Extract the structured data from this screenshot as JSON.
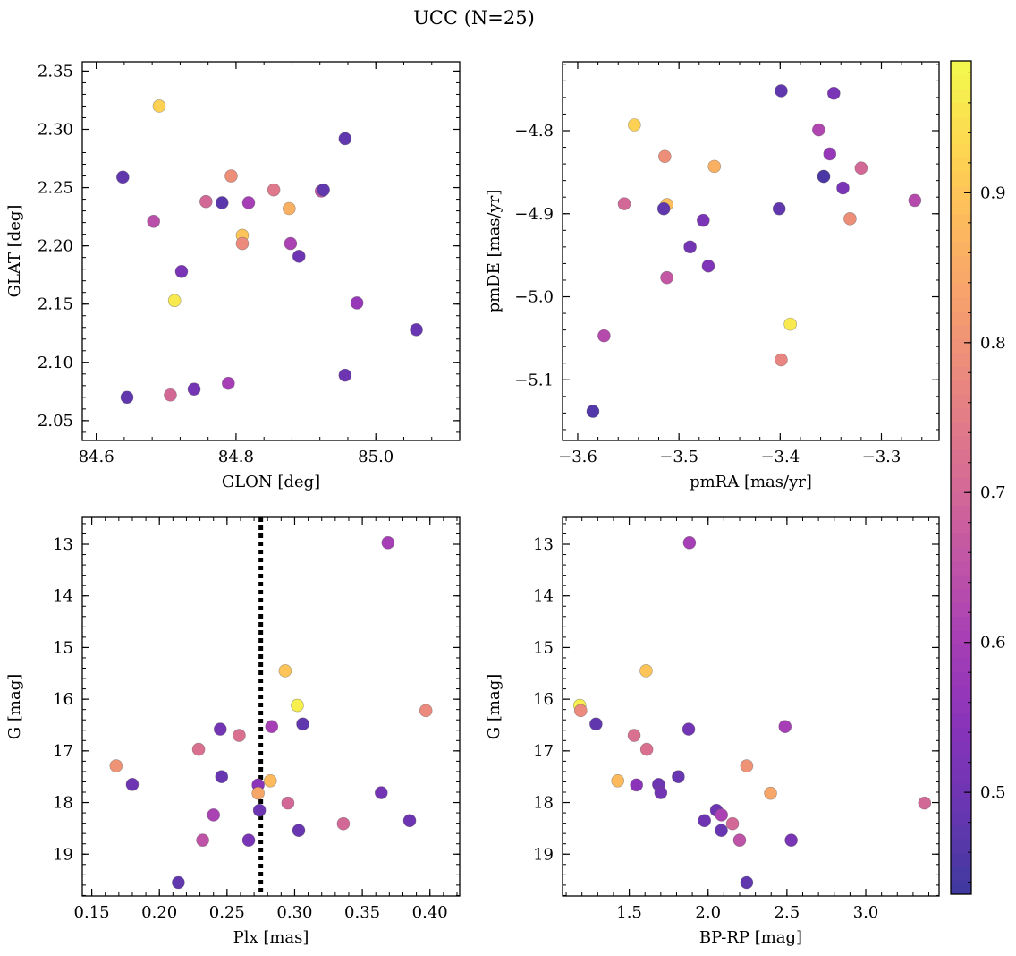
{
  "figure": {
    "title": "UCC (N=25)"
  },
  "colorbar": {
    "cmap": "plasma",
    "vmin": 0.432,
    "vmax": 0.988,
    "ticks": [
      0.5,
      0.6,
      0.7,
      0.8,
      0.9
    ],
    "tick_labels": [
      "0.5",
      "0.6",
      "0.7",
      "0.8",
      "0.9"
    ]
  },
  "chart_data": [
    {
      "type": "scatter",
      "xlabel": "GLON [deg]",
      "ylabel": "GLAT [deg]",
      "xlim": [
        84.58,
        85.12
      ],
      "ylim": [
        2.033,
        2.358
      ],
      "xticks": [
        84.6,
        84.8,
        85.0
      ],
      "xtick_labels": [
        "84.6",
        "84.8",
        "85.0"
      ],
      "yticks": [
        2.05,
        2.1,
        2.15,
        2.2,
        2.25,
        2.3,
        2.35
      ],
      "ytick_labels": [
        "2.05",
        "2.10",
        "2.15",
        "2.20",
        "2.25",
        "2.30",
        "2.35"
      ],
      "points": [
        {
          "x": 84.638,
          "y": 2.259,
          "c": 0.48
        },
        {
          "x": 84.69,
          "y": 2.32,
          "c": 0.92
        },
        {
          "x": 84.956,
          "y": 2.292,
          "c": 0.48
        },
        {
          "x": 84.793,
          "y": 2.26,
          "c": 0.79
        },
        {
          "x": 84.854,
          "y": 2.248,
          "c": 0.74
        },
        {
          "x": 84.922,
          "y": 2.247,
          "c": 0.66
        },
        {
          "x": 84.925,
          "y": 2.248,
          "c": 0.48
        },
        {
          "x": 84.757,
          "y": 2.238,
          "c": 0.7
        },
        {
          "x": 84.78,
          "y": 2.237,
          "c": 0.47
        },
        {
          "x": 84.818,
          "y": 2.237,
          "c": 0.6
        },
        {
          "x": 84.876,
          "y": 2.232,
          "c": 0.86
        },
        {
          "x": 84.682,
          "y": 2.221,
          "c": 0.64
        },
        {
          "x": 84.809,
          "y": 2.209,
          "c": 0.9
        },
        {
          "x": 84.809,
          "y": 2.202,
          "c": 0.78
        },
        {
          "x": 84.878,
          "y": 2.202,
          "c": 0.61
        },
        {
          "x": 84.89,
          "y": 2.191,
          "c": 0.5
        },
        {
          "x": 84.722,
          "y": 2.178,
          "c": 0.52
        },
        {
          "x": 84.712,
          "y": 2.153,
          "c": 0.96
        },
        {
          "x": 84.973,
          "y": 2.151,
          "c": 0.57
        },
        {
          "x": 85.058,
          "y": 2.128,
          "c": 0.49
        },
        {
          "x": 84.956,
          "y": 2.089,
          "c": 0.5
        },
        {
          "x": 84.789,
          "y": 2.082,
          "c": 0.6
        },
        {
          "x": 84.74,
          "y": 2.077,
          "c": 0.51
        },
        {
          "x": 84.706,
          "y": 2.072,
          "c": 0.7
        },
        {
          "x": 84.644,
          "y": 2.07,
          "c": 0.48
        }
      ]
    },
    {
      "type": "scatter",
      "xlabel": "pmRA [mas/yr]",
      "ylabel": "pmDE [mas/yr]",
      "xlim": [
        -3.615,
        -3.243
      ],
      "ylim": [
        -5.173,
        -4.717
      ],
      "xticks": [
        -3.6,
        -3.5,
        -3.4,
        -3.3
      ],
      "xtick_labels": [
        "−3.6",
        "−3.5",
        "−3.4",
        "−3.3"
      ],
      "yticks": [
        -5.1,
        -5.0,
        -4.9,
        -4.8
      ],
      "ytick_labels": [
        "−5.1",
        "−5.0",
        "−4.9",
        "−4.8"
      ],
      "points": [
        {
          "x": -3.399,
          "y": -4.752,
          "c": 0.48
        },
        {
          "x": -3.347,
          "y": -4.755,
          "c": 0.52
        },
        {
          "x": -3.544,
          "y": -4.793,
          "c": 0.92
        },
        {
          "x": -3.362,
          "y": -4.799,
          "c": 0.62
        },
        {
          "x": -3.514,
          "y": -4.831,
          "c": 0.79
        },
        {
          "x": -3.351,
          "y": -4.828,
          "c": 0.57
        },
        {
          "x": -3.465,
          "y": -4.843,
          "c": 0.86
        },
        {
          "x": -3.32,
          "y": -4.845,
          "c": 0.7
        },
        {
          "x": -3.357,
          "y": -4.855,
          "c": 0.48
        },
        {
          "x": -3.357,
          "y": -4.855,
          "c": 0.45
        },
        {
          "x": -3.338,
          "y": -4.869,
          "c": 0.52
        },
        {
          "x": -3.554,
          "y": -4.888,
          "c": 0.7
        },
        {
          "x": -3.512,
          "y": -4.889,
          "c": 0.89
        },
        {
          "x": -3.515,
          "y": -4.894,
          "c": 0.48
        },
        {
          "x": -3.401,
          "y": -4.894,
          "c": 0.48
        },
        {
          "x": -3.267,
          "y": -4.884,
          "c": 0.63
        },
        {
          "x": -3.331,
          "y": -4.906,
          "c": 0.79
        },
        {
          "x": -3.476,
          "y": -4.908,
          "c": 0.52
        },
        {
          "x": -3.489,
          "y": -4.94,
          "c": 0.51
        },
        {
          "x": -3.471,
          "y": -4.963,
          "c": 0.53
        },
        {
          "x": -3.512,
          "y": -4.977,
          "c": 0.66
        },
        {
          "x": -3.39,
          "y": -5.033,
          "c": 0.96
        },
        {
          "x": -3.574,
          "y": -5.047,
          "c": 0.63
        },
        {
          "x": -3.399,
          "y": -5.076,
          "c": 0.77
        },
        {
          "x": -3.585,
          "y": -5.138,
          "c": 0.46
        }
      ]
    },
    {
      "type": "scatter",
      "xlabel": "Plx [mas]",
      "ylabel": "G [mag]",
      "xlim": [
        0.143,
        0.422
      ],
      "ylim": [
        19.81,
        12.48
      ],
      "y_inverted": true,
      "xticks": [
        0.15,
        0.2,
        0.25,
        0.3,
        0.35,
        0.4
      ],
      "xtick_labels": [
        "0.15",
        "0.20",
        "0.25",
        "0.30",
        "0.35",
        "0.40"
      ],
      "yticks": [
        13,
        14,
        15,
        16,
        17,
        18,
        19
      ],
      "ytick_labels": [
        "13",
        "14",
        "15",
        "16",
        "17",
        "18",
        "19"
      ],
      "vline": 0.275,
      "points": [
        {
          "x": 0.369,
          "y": 12.97,
          "c": 0.6
        },
        {
          "x": 0.293,
          "y": 15.45,
          "c": 0.9
        },
        {
          "x": 0.302,
          "y": 16.12,
          "c": 0.97
        },
        {
          "x": 0.397,
          "y": 16.22,
          "c": 0.78
        },
        {
          "x": 0.306,
          "y": 16.48,
          "c": 0.48
        },
        {
          "x": 0.283,
          "y": 16.53,
          "c": 0.6
        },
        {
          "x": 0.245,
          "y": 16.58,
          "c": 0.51
        },
        {
          "x": 0.259,
          "y": 16.7,
          "c": 0.72
        },
        {
          "x": 0.229,
          "y": 16.97,
          "c": 0.72
        },
        {
          "x": 0.168,
          "y": 17.29,
          "c": 0.8
        },
        {
          "x": 0.246,
          "y": 17.5,
          "c": 0.49
        },
        {
          "x": 0.282,
          "y": 17.58,
          "c": 0.88
        },
        {
          "x": 0.18,
          "y": 17.65,
          "c": 0.5
        },
        {
          "x": 0.273,
          "y": 17.66,
          "c": 0.55
        },
        {
          "x": 0.273,
          "y": 17.82,
          "c": 0.84
        },
        {
          "x": 0.364,
          "y": 17.81,
          "c": 0.51
        },
        {
          "x": 0.295,
          "y": 18.01,
          "c": 0.7
        },
        {
          "x": 0.274,
          "y": 18.15,
          "c": 0.5
        },
        {
          "x": 0.24,
          "y": 18.24,
          "c": 0.61
        },
        {
          "x": 0.385,
          "y": 18.35,
          "c": 0.5
        },
        {
          "x": 0.336,
          "y": 18.41,
          "c": 0.7
        },
        {
          "x": 0.303,
          "y": 18.54,
          "c": 0.49
        },
        {
          "x": 0.232,
          "y": 18.73,
          "c": 0.65
        },
        {
          "x": 0.266,
          "y": 18.73,
          "c": 0.52
        },
        {
          "x": 0.214,
          "y": 19.55,
          "c": 0.48
        }
      ]
    },
    {
      "type": "scatter",
      "xlabel": "BP-RP [mag]",
      "ylabel": "G [mag]",
      "xlim": [
        1.077,
        3.465
      ],
      "ylim": [
        19.81,
        12.48
      ],
      "y_inverted": true,
      "xticks": [
        1.5,
        2.0,
        2.5,
        3.0
      ],
      "xtick_labels": [
        "1.5",
        "2.0",
        "2.5",
        "3.0"
      ],
      "yticks": [
        13,
        14,
        15,
        16,
        17,
        18,
        19
      ],
      "ytick_labels": [
        "13",
        "14",
        "15",
        "16",
        "17",
        "18",
        "19"
      ],
      "points": [
        {
          "x": 1.882,
          "y": 12.97,
          "c": 0.6
        },
        {
          "x": 1.607,
          "y": 15.45,
          "c": 0.9
        },
        {
          "x": 1.186,
          "y": 16.12,
          "c": 0.97
        },
        {
          "x": 1.192,
          "y": 16.22,
          "c": 0.78
        },
        {
          "x": 1.289,
          "y": 16.48,
          "c": 0.48
        },
        {
          "x": 2.488,
          "y": 16.53,
          "c": 0.6
        },
        {
          "x": 1.877,
          "y": 16.58,
          "c": 0.51
        },
        {
          "x": 1.531,
          "y": 16.7,
          "c": 0.72
        },
        {
          "x": 1.611,
          "y": 16.97,
          "c": 0.72
        },
        {
          "x": 2.245,
          "y": 17.29,
          "c": 0.8
        },
        {
          "x": 1.811,
          "y": 17.5,
          "c": 0.49
        },
        {
          "x": 1.427,
          "y": 17.58,
          "c": 0.88
        },
        {
          "x": 1.686,
          "y": 17.65,
          "c": 0.5
        },
        {
          "x": 1.546,
          "y": 17.66,
          "c": 0.55
        },
        {
          "x": 2.396,
          "y": 17.82,
          "c": 0.84
        },
        {
          "x": 1.7,
          "y": 17.81,
          "c": 0.51
        },
        {
          "x": 3.373,
          "y": 18.01,
          "c": 0.7
        },
        {
          "x": 2.053,
          "y": 18.15,
          "c": 0.5
        },
        {
          "x": 2.085,
          "y": 18.24,
          "c": 0.61
        },
        {
          "x": 1.977,
          "y": 18.35,
          "c": 0.5
        },
        {
          "x": 2.155,
          "y": 18.41,
          "c": 0.7
        },
        {
          "x": 2.084,
          "y": 18.54,
          "c": 0.49
        },
        {
          "x": 2.2,
          "y": 18.73,
          "c": 0.65
        },
        {
          "x": 2.527,
          "y": 18.73,
          "c": 0.52
        },
        {
          "x": 2.245,
          "y": 19.55,
          "c": 0.48
        }
      ]
    }
  ]
}
